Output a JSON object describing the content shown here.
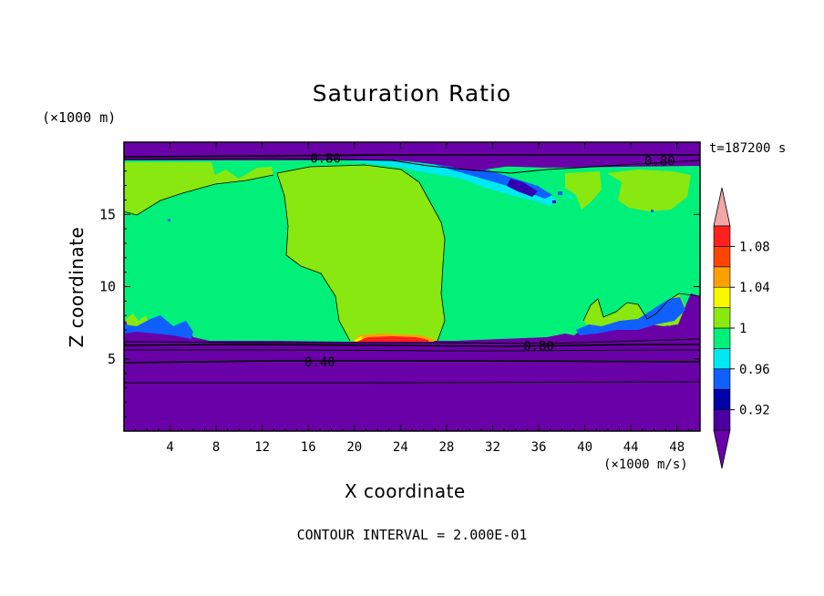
{
  "chart_data": {
    "type": "heatmap",
    "title": "Saturation Ratio",
    "xlabel": "X coordinate",
    "ylabel": "Z coordinate",
    "x_unit": "(×1000 m/s)",
    "y_unit": "(×1000 m)",
    "time_label": "t=187200 s",
    "footer": "CONTOUR INTERVAL = 2.000E-01",
    "xlim": [
      0,
      50
    ],
    "ylim": [
      0,
      20
    ],
    "x_ticks": [
      4,
      8,
      12,
      16,
      20,
      24,
      28,
      32,
      36,
      40,
      44,
      48
    ],
    "y_ticks": [
      5,
      10,
      15
    ],
    "contour_labels": [
      {
        "text": "0.80",
        "x": 17.5,
        "z": 18.9
      },
      {
        "text": "0.80",
        "x": 46.5,
        "z": 18.7
      },
      {
        "text": "0.80",
        "x": 36.0,
        "z": 5.9
      },
      {
        "text": "0.40",
        "x": 17.0,
        "z": 4.8
      }
    ],
    "colorbar": {
      "tick_labels": [
        "0.92",
        "0.96",
        "1",
        "1.04",
        "1.08"
      ],
      "levels": [
        {
          "min": null,
          "max": 0.9,
          "color": "#6a00a8"
        },
        {
          "min": 0.9,
          "max": 0.92,
          "color": "#4a00a0"
        },
        {
          "min": 0.92,
          "max": 0.94,
          "color": "#0000a8"
        },
        {
          "min": 0.94,
          "max": 0.96,
          "color": "#1060ff"
        },
        {
          "min": 0.96,
          "max": 0.98,
          "color": "#00e8f0"
        },
        {
          "min": 0.98,
          "max": 1.0,
          "color": "#00f07a"
        },
        {
          "min": 1.0,
          "max": 1.02,
          "color": "#88e810"
        },
        {
          "min": 1.02,
          "max": 1.04,
          "color": "#f8f800"
        },
        {
          "min": 1.04,
          "max": 1.06,
          "color": "#ffa000"
        },
        {
          "min": 1.06,
          "max": 1.08,
          "color": "#ff4400"
        },
        {
          "min": 1.08,
          "max": 1.1,
          "color": "#ff2020"
        },
        {
          "min": 1.1,
          "max": null,
          "color": "#f2a6a6"
        }
      ]
    },
    "regions": [
      {
        "description_value": "below 0.90",
        "color": "#6a00a8",
        "z_range": [
          0,
          6.2
        ]
      },
      {
        "description_value": "0.98-1.00",
        "color": "#00f07a",
        "z_range": [
          6.2,
          18.6
        ]
      },
      {
        "description_value": "1.00-1.02",
        "color": "#88e810",
        "x_range": [
          11,
          28
        ],
        "z_range": [
          6.3,
          17.8
        ]
      },
      {
        "description_value": "below 0.90",
        "color": "#6a00a8",
        "z_range": [
          18.6,
          20
        ]
      }
    ]
  }
}
